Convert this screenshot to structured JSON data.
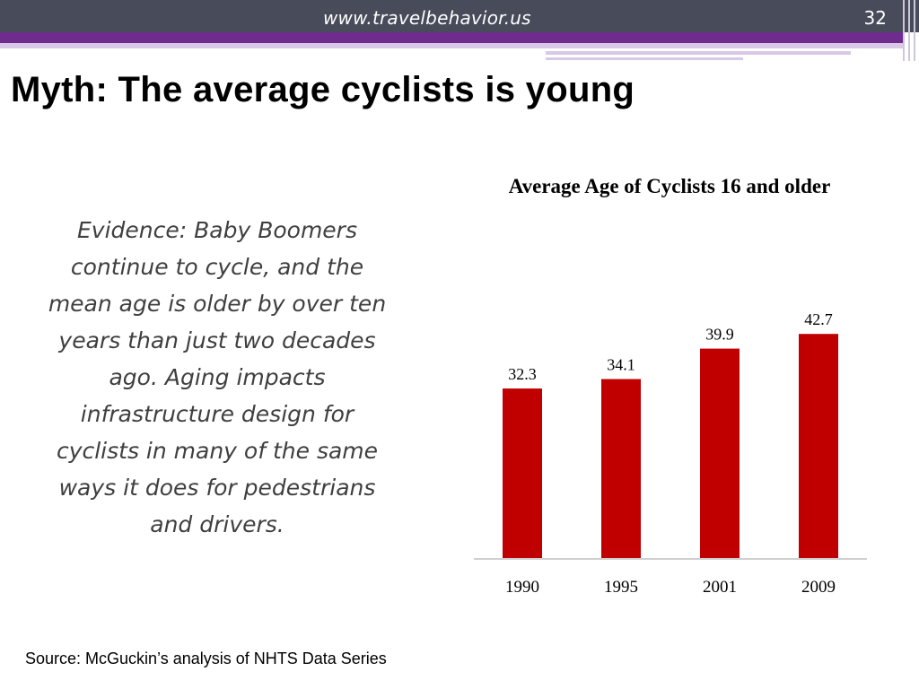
{
  "header": {
    "url": "www.travelbehavior.us",
    "slide_number": "32"
  },
  "slide": {
    "title": "Myth: The average cyclists is young",
    "evidence": "Evidence: Baby Boomers continue to cycle, and the mean age is older by over ten years than just two decades ago.  Aging impacts infrastructure design for cyclists in many of the same ways it does for pedestrians and drivers.",
    "source": "Source: McGuckin’s analysis of NHTS Data Series"
  },
  "colors": {
    "bar": "#c00000",
    "header_bar": "#474b5a",
    "accent_purple": "#6f2c8f"
  },
  "chart_data": {
    "type": "bar",
    "title": "Average Age of Cyclists 16 and older",
    "categories": [
      "1990",
      "1995",
      "2001",
      "2009"
    ],
    "values": [
      32.3,
      34.1,
      39.9,
      42.7
    ],
    "data_labels": [
      "32.3",
      "34.1",
      "39.9",
      "42.7"
    ],
    "xlabel": "",
    "ylabel": "",
    "ylim": [
      0,
      45
    ],
    "grid": false,
    "legend": "none"
  }
}
